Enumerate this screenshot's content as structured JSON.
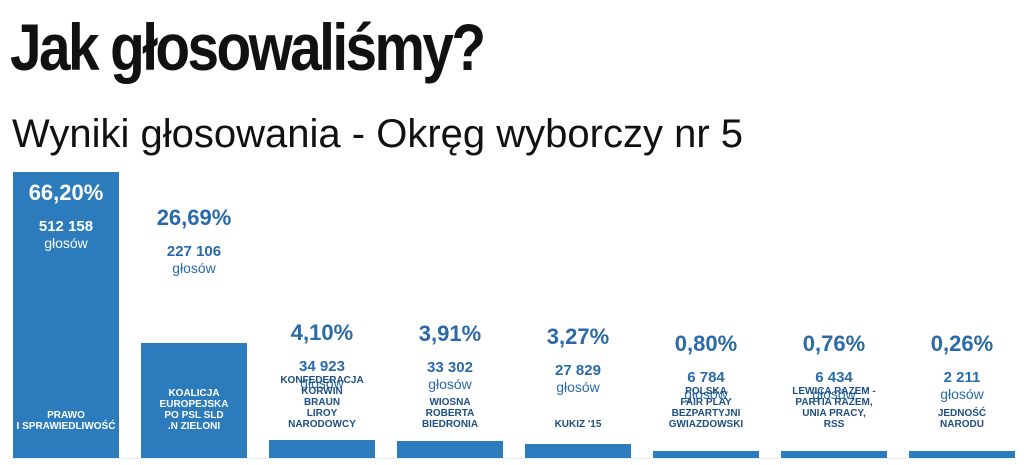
{
  "title": "Jak głosowaliśmy?",
  "subtitle": "Wyniki głosowania - Okręg wyborczy nr 5",
  "votes_unit": "głosów",
  "colors": {
    "bar": "#2b7bbd",
    "label": "#2a6aab",
    "name": "#1d4f80"
  },
  "chart_data": {
    "type": "bar",
    "title": "Wyniki głosowania - Okręg wyborczy nr 5",
    "xlabel": "",
    "ylabel": "",
    "ylim": [
      0,
      100
    ],
    "grid": false,
    "categories": [
      "PRAWO\nI SPRAWIEDLIWOŚĆ",
      "KOALICJA\nEUROPEJSKA\nPO PSL SLD\n.N ZIELONI",
      "KONFEDERACJA\nKORWIN\nBRAUN\nLIROY\nNARODOWCY",
      "WIOSNA\nROBERTA\nBIEDRONIA",
      "KUKIZ '15",
      "POLSKA\nFAIR PLAY\nBEZPARTYJNI\nGWIAZDOWSKI",
      "LEWICA RAZEM -\nPARTIA RAZEM,\nUNIA PRACY,\nRSS",
      "JEDNOŚĆ\nNARODU"
    ],
    "values": [
      66.2,
      26.69,
      4.1,
      3.91,
      3.27,
      0.8,
      0.76,
      0.26
    ],
    "percent_labels": [
      "66,20%",
      "26,69%",
      "4,10%",
      "3,91%",
      "3,27%",
      "0,80%",
      "0,76%",
      "0,26%"
    ],
    "votes": [
      512158,
      227106,
      34923,
      33302,
      27829,
      6784,
      6434,
      2211
    ],
    "votes_labels": [
      "512 158",
      "227 106",
      "34 923",
      "33 302",
      "27 829",
      "6 784",
      "6 434",
      "2 211"
    ]
  }
}
